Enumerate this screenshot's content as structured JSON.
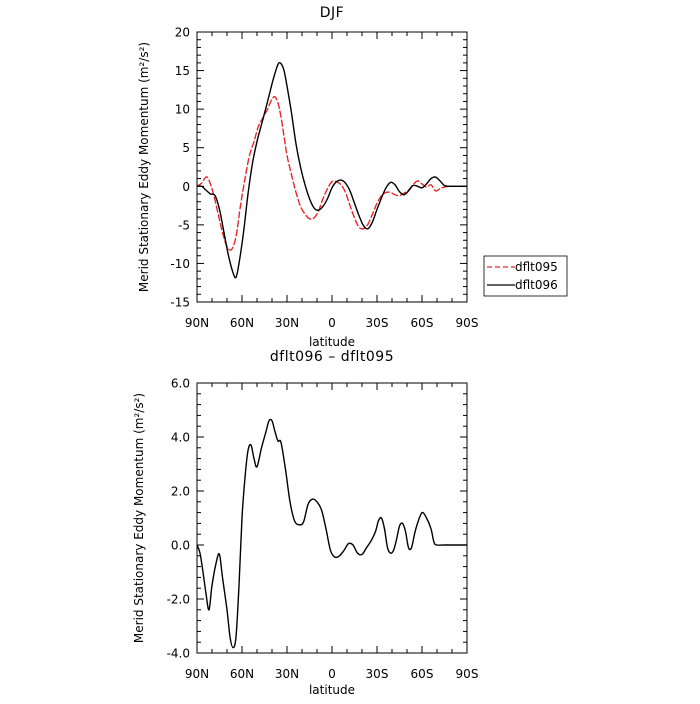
{
  "chart_data": [
    {
      "type": "line",
      "title": "DJF",
      "xlabel": "latitude",
      "ylabel": "Merid Stationary Eddy Momentum (m²/s²)",
      "xlim": [
        90,
        -90
      ],
      "ylim": [
        -15,
        20
      ],
      "x_ticks": [
        90,
        60,
        30,
        0,
        -30,
        -60,
        -90
      ],
      "x_tick_labels": [
        "90N",
        "60N",
        "30N",
        "0",
        "30S",
        "60S",
        "90S"
      ],
      "y_ticks": [
        -15,
        -10,
        -5,
        0,
        5,
        10,
        15,
        20
      ],
      "y_tick_labels": [
        "-15",
        "-10",
        "-5",
        "0",
        "5",
        "10",
        "15",
        "20"
      ],
      "legend_position": "right-bottom, outside plot",
      "series": [
        {
          "name": "dflt095",
          "color": "#e8272a",
          "style": "dashed",
          "points": [
            [
              90,
              0
            ],
            [
              87,
              0.4
            ],
            [
              84,
              1.2
            ],
            [
              82,
              0.8
            ],
            [
              79,
              -1
            ],
            [
              76,
              -3.5
            ],
            [
              73,
              -6
            ],
            [
              70,
              -7.8
            ],
            [
              67,
              -8.2
            ],
            [
              64,
              -6.5
            ],
            [
              61,
              -2.5
            ],
            [
              58,
              1
            ],
            [
              55,
              4
            ],
            [
              52,
              5.8
            ],
            [
              49,
              7.8
            ],
            [
              46,
              8.9
            ],
            [
              43,
              10
            ],
            [
              40,
              11.3
            ],
            [
              38,
              11.6
            ],
            [
              36,
              10.8
            ],
            [
              34,
              9
            ],
            [
              32,
              6.5
            ],
            [
              30,
              4
            ],
            [
              27,
              1.5
            ],
            [
              24,
              -0.8
            ],
            [
              21,
              -2.6
            ],
            [
              18,
              -3.6
            ],
            [
              15,
              -4.2
            ],
            [
              12,
              -4.1
            ],
            [
              9,
              -3.2
            ],
            [
              6,
              -1.6
            ],
            [
              3,
              -0.3
            ],
            [
              0,
              0.6
            ],
            [
              -3,
              0.6
            ],
            [
              -6,
              0.2
            ],
            [
              -9,
              -0.8
            ],
            [
              -12,
              -2.5
            ],
            [
              -15,
              -4.1
            ],
            [
              -18,
              -5.3
            ],
            [
              -21,
              -5.5
            ],
            [
              -24,
              -4.9
            ],
            [
              -27,
              -3.6
            ],
            [
              -30,
              -2.2
            ],
            [
              -33,
              -1.2
            ],
            [
              -36,
              -0.8
            ],
            [
              -39,
              -0.8
            ],
            [
              -42,
              -1.1
            ],
            [
              -45,
              -1.2
            ],
            [
              -48,
              -0.9
            ],
            [
              -51,
              -0.5
            ],
            [
              -54,
              0.2
            ],
            [
              -57,
              0.7
            ],
            [
              -60,
              0.3
            ],
            [
              -63,
              -0.1
            ],
            [
              -66,
              0.2
            ],
            [
              -69,
              -0.6
            ],
            [
              -72,
              -0.3
            ],
            [
              -75,
              -0.1
            ],
            [
              -78,
              0
            ],
            [
              -81,
              0
            ],
            [
              -84,
              0
            ],
            [
              -87,
              0
            ],
            [
              -90,
              0
            ]
          ]
        },
        {
          "name": "dflt096",
          "color": "#000000",
          "style": "solid",
          "points": [
            [
              90,
              0
            ],
            [
              87,
              0
            ],
            [
              84,
              -0.5
            ],
            [
              81,
              -1
            ],
            [
              78,
              -1.2
            ],
            [
              75,
              -3
            ],
            [
              72,
              -6
            ],
            [
              69,
              -9
            ],
            [
              66,
              -11.2
            ],
            [
              64,
              -11.8
            ],
            [
              62,
              -10
            ],
            [
              59,
              -6
            ],
            [
              56,
              -1
            ],
            [
              53,
              3
            ],
            [
              50,
              5.8
            ],
            [
              47,
              8
            ],
            [
              44,
              10.2
            ],
            [
              41,
              12.5
            ],
            [
              39,
              14
            ],
            [
              36,
              15.8
            ],
            [
              34,
              15.9
            ],
            [
              32,
              15
            ],
            [
              30,
              13
            ],
            [
              27,
              9.5
            ],
            [
              24,
              5.5
            ],
            [
              21,
              2.5
            ],
            [
              18,
              0.2
            ],
            [
              15,
              -1.6
            ],
            [
              12,
              -2.8
            ],
            [
              9,
              -3.1
            ],
            [
              6,
              -2.6
            ],
            [
              3,
              -1.6
            ],
            [
              0,
              -0.2
            ],
            [
              -3,
              0.6
            ],
            [
              -6,
              0.8
            ],
            [
              -9,
              0.4
            ],
            [
              -12,
              -0.6
            ],
            [
              -15,
              -2.2
            ],
            [
              -18,
              -3.8
            ],
            [
              -21,
              -5.1
            ],
            [
              -24,
              -5.5
            ],
            [
              -27,
              -4.6
            ],
            [
              -30,
              -3
            ],
            [
              -33,
              -1.5
            ],
            [
              -36,
              -0.2
            ],
            [
              -39,
              0.5
            ],
            [
              -42,
              0.2
            ],
            [
              -45,
              -0.7
            ],
            [
              -48,
              -1.1
            ],
            [
              -51,
              -0.6
            ],
            [
              -54,
              0.1
            ],
            [
              -57,
              0
            ],
            [
              -60,
              -0.2
            ],
            [
              -63,
              0.3
            ],
            [
              -66,
              1
            ],
            [
              -69,
              1.2
            ],
            [
              -72,
              0.7
            ],
            [
              -75,
              0.1
            ],
            [
              -78,
              0
            ],
            [
              -81,
              0
            ],
            [
              -84,
              0
            ],
            [
              -87,
              0
            ],
            [
              -90,
              0
            ]
          ]
        }
      ],
      "legend": [
        "dflt095",
        "dflt096"
      ]
    },
    {
      "type": "line",
      "title": "dflt096 – dflt095",
      "xlabel": "latitude",
      "ylabel": "Merid Stationary Eddy Momentum (m²/s²)",
      "xlim": [
        90,
        -90
      ],
      "ylim": [
        -4,
        6
      ],
      "x_ticks": [
        90,
        60,
        30,
        0,
        -30,
        -60,
        -90
      ],
      "x_tick_labels": [
        "90N",
        "60N",
        "30N",
        "0",
        "30S",
        "60S",
        "90S"
      ],
      "y_ticks": [
        -4,
        -2,
        0,
        2,
        4,
        6
      ],
      "y_tick_labels": [
        "-4.0",
        "-2.0",
        "0.0",
        "2.0",
        "4.0",
        "6.0"
      ],
      "series": [
        {
          "color": "#000000",
          "style": "solid",
          "points": [
            [
              90,
              0
            ],
            [
              88,
              -0.3
            ],
            [
              86,
              -1
            ],
            [
              84,
              -1.8
            ],
            [
              82,
              -2.4
            ],
            [
              80,
              -1.5
            ],
            [
              77,
              -0.6
            ],
            [
              75,
              -0.35
            ],
            [
              73,
              -1.2
            ],
            [
              70,
              -2.4
            ],
            [
              68,
              -3.4
            ],
            [
              66,
              -3.8
            ],
            [
              64,
              -3.4
            ],
            [
              62,
              -1.5
            ],
            [
              60,
              1
            ],
            [
              58,
              2.5
            ],
            [
              56,
              3.5
            ],
            [
              54,
              3.7
            ],
            [
              52,
              3.2
            ],
            [
              50,
              2.9
            ],
            [
              47,
              3.6
            ],
            [
              44,
              4.2
            ],
            [
              42,
              4.6
            ],
            [
              40,
              4.6
            ],
            [
              38,
              4.2
            ],
            [
              36,
              3.85
            ],
            [
              34,
              3.8
            ],
            [
              31,
              2.8
            ],
            [
              28,
              1.6
            ],
            [
              25,
              0.9
            ],
            [
              22,
              0.75
            ],
            [
              19,
              0.85
            ],
            [
              16,
              1.5
            ],
            [
              13,
              1.7
            ],
            [
              10,
              1.6
            ],
            [
              7,
              1.3
            ],
            [
              4,
              0.6
            ],
            [
              1,
              -0.2
            ],
            [
              -2,
              -0.45
            ],
            [
              -5,
              -0.4
            ],
            [
              -8,
              -0.2
            ],
            [
              -11,
              0.05
            ],
            [
              -14,
              0
            ],
            [
              -17,
              -0.3
            ],
            [
              -20,
              -0.35
            ],
            [
              -23,
              -0.1
            ],
            [
              -26,
              0.15
            ],
            [
              -29,
              0.5
            ],
            [
              -31,
              0.9
            ],
            [
              -33,
              1
            ],
            [
              -35,
              0.6
            ],
            [
              -37,
              -0.1
            ],
            [
              -39,
              -0.3
            ],
            [
              -41,
              -0.2
            ],
            [
              -43,
              0.2
            ],
            [
              -45,
              0.7
            ],
            [
              -47,
              0.8
            ],
            [
              -49,
              0.5
            ],
            [
              -51,
              -0.1
            ],
            [
              -53,
              -0.1
            ],
            [
              -55,
              0.4
            ],
            [
              -57,
              0.8
            ],
            [
              -60,
              1.2
            ],
            [
              -63,
              1
            ],
            [
              -66,
              0.6
            ],
            [
              -68,
              0.1
            ],
            [
              -70,
              0
            ],
            [
              -75,
              0
            ],
            [
              -80,
              0
            ],
            [
              -85,
              0
            ],
            [
              -90,
              0
            ]
          ]
        }
      ]
    }
  ]
}
